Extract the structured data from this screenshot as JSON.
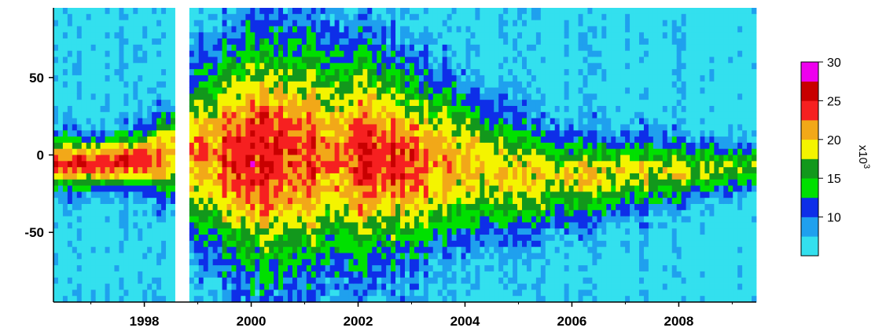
{
  "chart_data": {
    "type": "heatmap",
    "title": "",
    "xlabel": "",
    "ylabel": "",
    "xlim": [
      1996.3,
      2009.45
    ],
    "ylim": [
      -95,
      95
    ],
    "x_ticks": [
      {
        "value": 1998,
        "label": "1998"
      },
      {
        "value": 2000,
        "label": "2000"
      },
      {
        "value": 2002,
        "label": "2002"
      },
      {
        "value": 2004,
        "label": "2004"
      },
      {
        "value": 2006,
        "label": "2006"
      },
      {
        "value": 2008,
        "label": "2008"
      }
    ],
    "y_ticks": [
      {
        "value": 50,
        "label": "50"
      },
      {
        "value": 0,
        "label": "0"
      },
      {
        "value": -50,
        "label": "-50"
      }
    ],
    "colorbar": {
      "range": [
        5,
        30
      ],
      "ticks": [
        {
          "value": 10,
          "label": "10"
        },
        {
          "value": 15,
          "label": "15"
        },
        {
          "value": 20,
          "label": "20"
        },
        {
          "value": 25,
          "label": "25"
        },
        {
          "value": 30,
          "label": "30"
        }
      ],
      "unit_label": "x10",
      "unit_exponent": "3",
      "bands": [
        {
          "from": 5,
          "to": 7.5,
          "color": "#33e0ee"
        },
        {
          "from": 7.5,
          "to": 10,
          "color": "#1fa0ee"
        },
        {
          "from": 10,
          "to": 12.5,
          "color": "#0e2ee8"
        },
        {
          "from": 12.5,
          "to": 15,
          "color": "#00e000"
        },
        {
          "from": 15,
          "to": 17.5,
          "color": "#12981c"
        },
        {
          "from": 17.5,
          "to": 20,
          "color": "#f4f400"
        },
        {
          "from": 20,
          "to": 22.5,
          "color": "#f2a818"
        },
        {
          "from": 22.5,
          "to": 25,
          "color": "#f62020"
        },
        {
          "from": 25,
          "to": 27.5,
          "color": "#c80000"
        },
        {
          "from": 27.5,
          "to": 30,
          "color": "#ee00ee"
        }
      ]
    },
    "data_gaps": [
      [
        1998.55,
        1998.85
      ],
      [
        1999.0,
        1999.04
      ]
    ],
    "field_profiles": [
      {
        "x": 1996.5,
        "peak": 24,
        "width": 16,
        "center": -5
      },
      {
        "x": 1997.3,
        "peak": 24,
        "width": 16,
        "center": -5
      },
      {
        "x": 1998.0,
        "peak": 24,
        "width": 17,
        "center": -3
      },
      {
        "x": 1998.5,
        "peak": 22,
        "width": 26,
        "center": 0
      },
      {
        "x": 1999.0,
        "peak": 21,
        "width": 55,
        "center": 0
      },
      {
        "x": 1999.7,
        "peak": 24,
        "width": 68,
        "center": 0
      },
      {
        "x": 2000.3,
        "peak": 25,
        "width": 74,
        "center": 0
      },
      {
        "x": 2001.0,
        "peak": 23,
        "width": 72,
        "center": 0
      },
      {
        "x": 2001.6,
        "peak": 22,
        "width": 68,
        "center": 0
      },
      {
        "x": 2002.2,
        "peak": 25,
        "width": 66,
        "center": 0
      },
      {
        "x": 2003.0,
        "peak": 23,
        "width": 56,
        "center": -5
      },
      {
        "x": 2003.8,
        "peak": 21,
        "width": 48,
        "center": -5
      },
      {
        "x": 2004.5,
        "peak": 20,
        "width": 40,
        "center": -10
      },
      {
        "x": 2005.3,
        "peak": 19,
        "width": 33,
        "center": -15
      },
      {
        "x": 2006.2,
        "peak": 19,
        "width": 26,
        "center": -15
      },
      {
        "x": 2007.2,
        "peak": 19,
        "width": 22,
        "center": -12
      },
      {
        "x": 2008.2,
        "peak": 18,
        "width": 18,
        "center": -10
      },
      {
        "x": 2009.4,
        "peak": 17,
        "width": 14,
        "center": -8
      }
    ]
  }
}
